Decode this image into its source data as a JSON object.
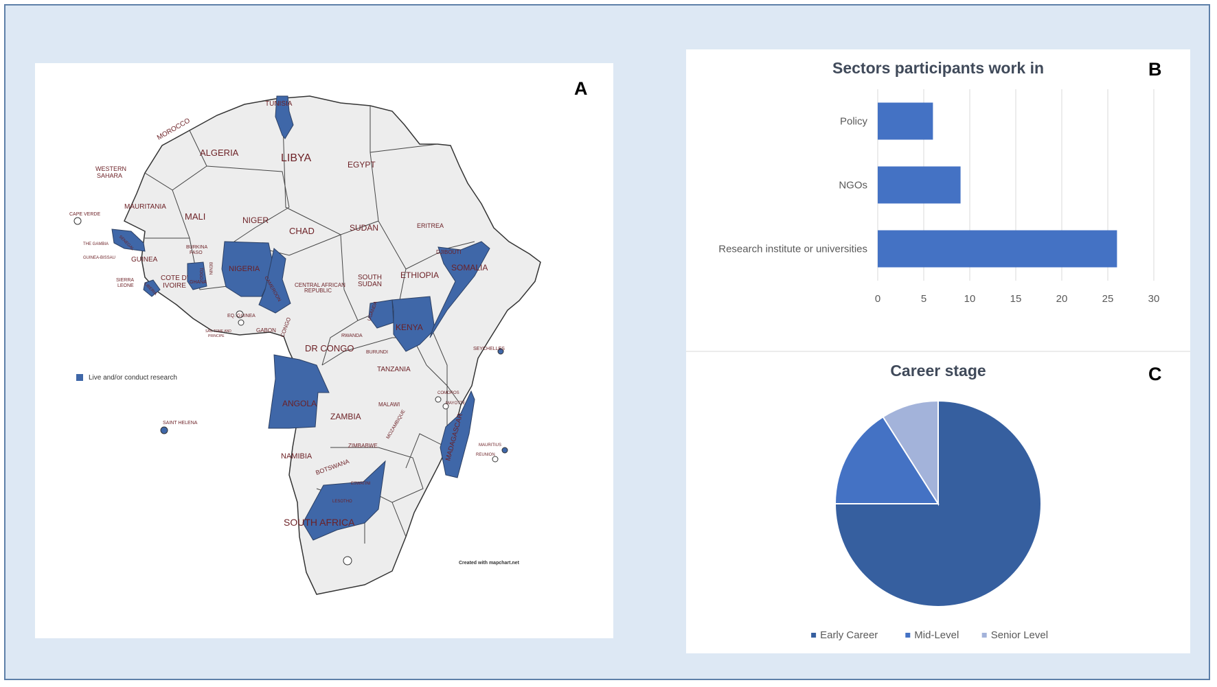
{
  "panel_a": {
    "letter": "A",
    "legend_label": "Live and/or conduct research",
    "credit": "Created with mapchart.net",
    "highlight_color": "#3f67a8",
    "countries": {
      "tunisia": "TUNISIA",
      "morocco": "MOROCCO",
      "algeria": "ALGERIA",
      "libya": "LIBYA",
      "egypt": "EGYPT",
      "western_sahara_1": "WESTERN",
      "western_sahara_2": "SAHARA",
      "mauritania": "MAURITANIA",
      "mali": "MALI",
      "niger": "NIGER",
      "chad": "CHAD",
      "sudan": "SUDAN",
      "eritrea": "ERITREA",
      "cape_verde": "CAPE VERDE",
      "senegal": "SENEGAL",
      "the_gambia": "THE GAMBIA",
      "guinea_bissau": "GUINEA-BISSAU",
      "guinea": "GUINEA",
      "burkina_1": "BURKINA",
      "burkina_2": "FASO",
      "benin": "BENIN",
      "togo": "TOGO",
      "nigeria": "NIGERIA",
      "djibouti": "DJIBOUTI",
      "somalia": "SOMALIA",
      "sierra_1": "SIERRA",
      "sierra_2": "LEONE",
      "cote_1": "COTE D'",
      "cote_2": "IVOIRE",
      "ghana": "GHANA",
      "liberia": "LIBERIA",
      "cameroon": "CAMEROON",
      "car_1": "CENTRAL AFRICAN",
      "car_2": "REPUBLIC",
      "south_sudan_1": "SOUTH",
      "south_sudan_2": "SUDAN",
      "ethiopia": "ETHIOPIA",
      "eq_guinea": "EQ. GUINEA",
      "sao_tome_1": "SÃO TOME AND",
      "sao_tome_2": "PRINCIPE",
      "gabon": "GABON",
      "congo": "CONGO",
      "uganda": "UGANDA",
      "kenya": "KENYA",
      "rwanda": "RWANDA",
      "dr_congo": "DR CONGO",
      "burundi": "BURUNDI",
      "seychelles": "SEYCHELLES",
      "tanzania": "TANZANIA",
      "comoros": "COMOROS",
      "mayotte": "MAYOTTE",
      "angola": "ANGOLA",
      "malawi": "MALAWI",
      "zambia": "ZAMBIA",
      "saint_helena": "SAINT HELENA",
      "mozambique": "MOZAMBIQUE",
      "madagascar": "MADAGASCAR",
      "mauritius": "MAURITIUS",
      "reunion": "REUNION",
      "zimbabwe": "ZIMBABWE",
      "namibia": "NAMIBIA",
      "botswana": "BOTSWANA",
      "eswatini": "ESWATINI",
      "lesotho": "LESOTHO",
      "south_africa": "SOUTH AFRICA"
    }
  },
  "panel_b": {
    "letter": "B"
  },
  "panel_c": {
    "letter": "C"
  },
  "chart_data": [
    {
      "type": "bar",
      "orientation": "horizontal",
      "title": "Sectors participants work in",
      "categories": [
        "Policy",
        "NGOs",
        "Research institute or universities"
      ],
      "values": [
        6,
        9,
        26
      ],
      "xlim": [
        0,
        30
      ],
      "ticks": [
        0,
        5,
        10,
        15,
        20,
        25,
        30
      ],
      "grid": true,
      "color": "#4472c4"
    },
    {
      "type": "pie",
      "title": "Career stage",
      "labels": [
        "Early Career",
        "Mid-Level",
        "Senior Level"
      ],
      "values": [
        75,
        16,
        9
      ],
      "colors": [
        "#365f9f",
        "#4472c4",
        "#a3b3da"
      ],
      "legend": "bottom"
    }
  ]
}
